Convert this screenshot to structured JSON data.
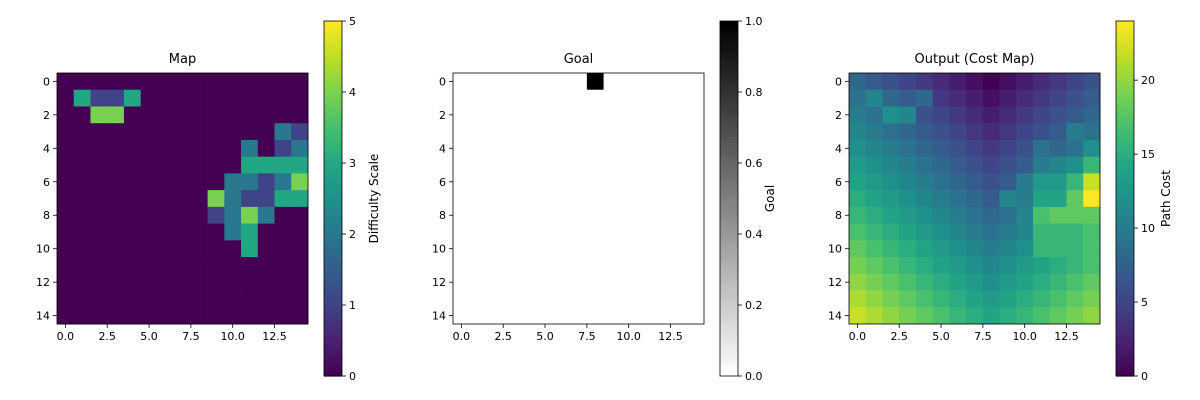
{
  "chart_data": [
    {
      "type": "heatmap",
      "title": "Map",
      "colormap": "viridis",
      "x_ticks": [
        "0.0",
        "2.5",
        "5.0",
        "7.5",
        "10.0",
        "12.5"
      ],
      "y_ticks": [
        "0",
        "2",
        "4",
        "6",
        "8",
        "10",
        "12",
        "14"
      ],
      "colorbar": {
        "label": "Difficulty Scale",
        "range": [
          0,
          5
        ],
        "ticks": [
          "0",
          "1",
          "2",
          "3",
          "4",
          "5"
        ]
      },
      "values": [
        [
          0,
          0,
          0,
          0,
          0,
          0,
          0,
          0,
          0,
          0,
          0,
          0,
          0,
          0,
          0
        ],
        [
          0,
          3,
          1,
          1,
          3,
          0,
          0,
          0,
          0,
          0,
          0,
          0,
          0,
          0,
          0
        ],
        [
          0,
          0,
          4,
          4,
          0,
          0,
          0,
          0,
          0,
          0,
          0,
          0,
          0,
          0,
          0
        ],
        [
          0,
          0,
          0,
          0,
          0,
          0,
          0,
          0,
          0,
          0,
          0,
          0,
          0,
          2,
          1
        ],
        [
          0,
          0,
          0,
          0,
          0,
          0,
          0,
          0,
          0,
          0,
          0,
          2,
          0,
          1,
          2
        ],
        [
          0,
          0,
          0,
          0,
          0,
          0,
          0,
          0,
          0,
          0,
          0,
          3,
          3,
          3,
          3
        ],
        [
          0,
          0,
          0,
          0,
          0,
          0,
          0,
          0,
          0,
          0,
          2,
          2,
          1,
          2,
          4
        ],
        [
          0,
          0,
          0,
          0,
          0,
          0,
          0,
          0,
          0,
          4,
          2,
          1,
          1,
          3,
          3
        ],
        [
          0,
          0,
          0,
          0,
          0,
          0,
          0,
          0,
          0,
          1,
          2,
          4,
          2,
          0,
          0
        ],
        [
          0,
          0,
          0,
          0,
          0,
          0,
          0,
          0,
          0,
          0,
          2,
          3,
          0,
          0,
          0
        ],
        [
          0,
          0,
          0,
          0,
          0,
          0,
          0,
          0,
          0,
          0,
          0,
          3,
          0,
          0,
          0
        ],
        [
          0,
          0,
          0,
          0,
          0,
          0,
          0,
          0,
          0,
          0,
          0,
          0,
          0,
          0,
          0
        ],
        [
          0,
          0,
          0,
          0,
          0,
          0,
          0,
          0,
          0,
          0,
          0,
          0,
          0,
          0,
          0
        ],
        [
          0,
          0,
          0,
          0,
          0,
          0,
          0,
          0,
          0,
          0,
          0,
          0,
          0,
          0,
          0
        ],
        [
          0,
          0,
          0,
          0,
          0,
          0,
          0,
          0,
          0,
          0,
          0,
          0,
          0,
          0,
          0
        ]
      ]
    },
    {
      "type": "heatmap",
      "title": "Goal",
      "colormap": "gray_r",
      "x_ticks": [
        "0.0",
        "2.5",
        "5.0",
        "7.5",
        "10.0",
        "12.5"
      ],
      "y_ticks": [
        "0",
        "2",
        "4",
        "6",
        "8",
        "10",
        "12",
        "14"
      ],
      "colorbar": {
        "label": "Goal",
        "range": [
          0,
          1
        ],
        "ticks": [
          "0.0",
          "0.2",
          "0.4",
          "0.6",
          "0.8",
          "1.0"
        ]
      },
      "values": [
        [
          0,
          0,
          0,
          0,
          0,
          0,
          0,
          0,
          1,
          0,
          0,
          0,
          0,
          0,
          0
        ],
        [
          0,
          0,
          0,
          0,
          0,
          0,
          0,
          0,
          0,
          0,
          0,
          0,
          0,
          0,
          0
        ],
        [
          0,
          0,
          0,
          0,
          0,
          0,
          0,
          0,
          0,
          0,
          0,
          0,
          0,
          0,
          0
        ],
        [
          0,
          0,
          0,
          0,
          0,
          0,
          0,
          0,
          0,
          0,
          0,
          0,
          0,
          0,
          0
        ],
        [
          0,
          0,
          0,
          0,
          0,
          0,
          0,
          0,
          0,
          0,
          0,
          0,
          0,
          0,
          0
        ],
        [
          0,
          0,
          0,
          0,
          0,
          0,
          0,
          0,
          0,
          0,
          0,
          0,
          0,
          0,
          0
        ],
        [
          0,
          0,
          0,
          0,
          0,
          0,
          0,
          0,
          0,
          0,
          0,
          0,
          0,
          0,
          0
        ],
        [
          0,
          0,
          0,
          0,
          0,
          0,
          0,
          0,
          0,
          0,
          0,
          0,
          0,
          0,
          0
        ],
        [
          0,
          0,
          0,
          0,
          0,
          0,
          0,
          0,
          0,
          0,
          0,
          0,
          0,
          0,
          0
        ],
        [
          0,
          0,
          0,
          0,
          0,
          0,
          0,
          0,
          0,
          0,
          0,
          0,
          0,
          0,
          0
        ],
        [
          0,
          0,
          0,
          0,
          0,
          0,
          0,
          0,
          0,
          0,
          0,
          0,
          0,
          0,
          0
        ],
        [
          0,
          0,
          0,
          0,
          0,
          0,
          0,
          0,
          0,
          0,
          0,
          0,
          0,
          0,
          0
        ],
        [
          0,
          0,
          0,
          0,
          0,
          0,
          0,
          0,
          0,
          0,
          0,
          0,
          0,
          0,
          0
        ],
        [
          0,
          0,
          0,
          0,
          0,
          0,
          0,
          0,
          0,
          0,
          0,
          0,
          0,
          0,
          0
        ],
        [
          0,
          0,
          0,
          0,
          0,
          0,
          0,
          0,
          0,
          0,
          0,
          0,
          0,
          0,
          0
        ]
      ]
    },
    {
      "type": "heatmap",
      "title": "Output (Cost Map)",
      "colormap": "viridis",
      "x_ticks": [
        "0.0",
        "2.5",
        "5.0",
        "7.5",
        "10.0",
        "12.5"
      ],
      "y_ticks": [
        "0",
        "2",
        "4",
        "6",
        "8",
        "10",
        "12",
        "14"
      ],
      "colorbar": {
        "label": "Path Cost",
        "range": [
          0,
          24
        ],
        "ticks": [
          "0",
          "5",
          "10",
          "15",
          "20"
        ]
      },
      "values": [
        [
          8,
          7,
          6,
          5,
          4,
          3,
          2,
          1,
          0,
          1,
          2,
          3,
          4,
          5,
          6
        ],
        [
          9,
          11,
          8,
          7,
          8,
          4,
          3,
          2,
          1,
          2,
          3,
          4,
          5,
          6,
          7
        ],
        [
          10,
          9,
          12,
          11,
          6,
          5,
          4,
          3,
          2,
          3,
          4,
          5,
          6,
          7,
          8
        ],
        [
          11,
          10,
          9,
          8,
          7,
          6,
          5,
          4,
          3,
          4,
          5,
          6,
          7,
          10,
          9
        ],
        [
          12,
          11,
          10,
          9,
          8,
          7,
          6,
          5,
          4,
          5,
          6,
          9,
          8,
          9,
          12
        ],
        [
          13,
          12,
          11,
          10,
          9,
          8,
          7,
          6,
          5,
          6,
          7,
          10,
          11,
          12,
          16
        ],
        [
          14,
          13,
          12,
          11,
          10,
          9,
          8,
          7,
          6,
          7,
          10,
          13,
          13,
          16,
          22
        ],
        [
          15,
          14,
          13,
          12,
          11,
          10,
          9,
          8,
          7,
          11,
          10,
          14,
          14,
          18,
          24
        ],
        [
          16,
          15,
          14,
          13,
          12,
          11,
          10,
          9,
          8,
          9,
          11,
          17,
          18,
          18,
          18
        ],
        [
          17,
          16,
          15,
          14,
          13,
          12,
          11,
          10,
          9,
          10,
          11,
          16,
          16,
          16,
          17
        ],
        [
          18,
          17,
          16,
          15,
          14,
          13,
          12,
          11,
          10,
          11,
          12,
          16,
          16,
          16,
          17
        ],
        [
          19,
          18,
          17,
          16,
          15,
          14,
          13,
          12,
          11,
          12,
          13,
          14,
          15,
          16,
          17
        ],
        [
          20,
          19,
          18,
          17,
          16,
          15,
          14,
          13,
          12,
          13,
          14,
          15,
          16,
          17,
          18
        ],
        [
          21,
          20,
          19,
          18,
          17,
          16,
          15,
          14,
          13,
          14,
          15,
          16,
          17,
          18,
          19
        ],
        [
          22,
          21,
          20,
          19,
          18,
          17,
          16,
          15,
          14,
          15,
          16,
          17,
          18,
          19,
          20
        ]
      ]
    }
  ]
}
